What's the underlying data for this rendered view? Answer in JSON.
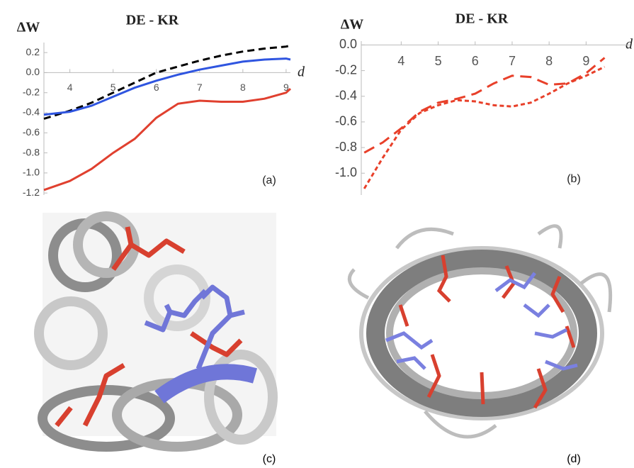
{
  "chart_data": [
    {
      "type": "line",
      "title": "DE - KR",
      "y_label": "ΔW",
      "x_label": "d",
      "panel_label": "(a)",
      "x": [
        3.4,
        4,
        4.5,
        5,
        5.5,
        6,
        6.5,
        7,
        7.5,
        8,
        8.5,
        9,
        9.1
      ],
      "series": [
        {
          "color": "#000000",
          "dash": "10,6",
          "values": [
            -0.46,
            -0.38,
            -0.3,
            -0.2,
            -0.1,
            0.0,
            0.06,
            0.12,
            0.17,
            0.21,
            0.24,
            0.26,
            0.27
          ]
        },
        {
          "color": "#2f55e0",
          "dash": "none",
          "values": [
            -0.42,
            -0.39,
            -0.33,
            -0.24,
            -0.15,
            -0.08,
            -0.02,
            0.03,
            0.07,
            0.11,
            0.13,
            0.14,
            0.13
          ]
        },
        {
          "color": "#e0402f",
          "dash": "none",
          "values": [
            -1.17,
            -1.08,
            -0.96,
            -0.8,
            -0.66,
            -0.45,
            -0.31,
            -0.28,
            -0.29,
            -0.29,
            -0.26,
            -0.2,
            -0.16
          ]
        }
      ],
      "xlim": [
        3.4,
        9.1
      ],
      "ylim": [
        -1.22,
        0.3
      ],
      "xticks": [
        4,
        5,
        6,
        7,
        8,
        9
      ],
      "yticks": [
        0.2,
        {
          "value": 0,
          "label": "0.0"
        },
        -0.2,
        -0.4,
        -0.6,
        -0.8,
        {
          "value": -1,
          "label": "-1.0"
        },
        -1.2
      ]
    },
    {
      "type": "line",
      "title": "DE - KR",
      "y_label": "ΔW",
      "x_label": "d",
      "panel_label": "(b)",
      "x": [
        3,
        3.5,
        4,
        4.5,
        5,
        5.5,
        6,
        6.5,
        7,
        7.5,
        8,
        8.5,
        9,
        9.5
      ],
      "series": [
        {
          "color": "#e8402a",
          "dash": "16,9",
          "values": [
            -0.84,
            -0.76,
            -0.65,
            -0.52,
            -0.45,
            -0.42,
            -0.38,
            -0.3,
            -0.24,
            -0.25,
            -0.31,
            -0.3,
            -0.22,
            -0.1
          ]
        },
        {
          "color": "#e8402a",
          "dash": "6,4",
          "values": [
            -1.12,
            -0.88,
            -0.66,
            -0.53,
            -0.47,
            -0.43,
            -0.44,
            -0.47,
            -0.48,
            -0.45,
            -0.38,
            -0.3,
            -0.24,
            -0.17
          ]
        }
      ],
      "xlim": [
        2.92,
        10.2
      ],
      "ylim": [
        -1.17,
        0.03
      ],
      "xticks": [
        4,
        5,
        6,
        7,
        8,
        9
      ],
      "yticks": [
        {
          "value": 0,
          "label": "0.0"
        },
        -0.2,
        -0.4,
        -0.6,
        -0.8,
        {
          "value": -1,
          "label": "-1.0"
        }
      ]
    }
  ],
  "panels": {
    "c": "(c)",
    "d": "(d)"
  }
}
